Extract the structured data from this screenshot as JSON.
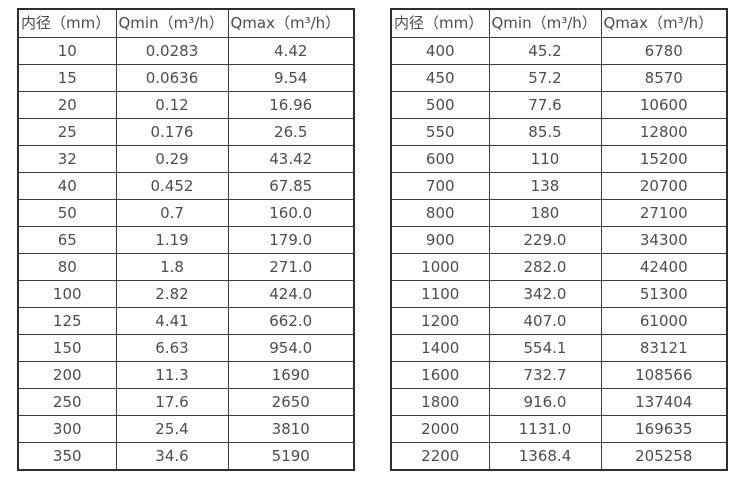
{
  "colors": {
    "background": "#ffffff",
    "border_outer": "#2e2e2e",
    "border_inner": "#3c3c3c",
    "text": "#4d4d4d"
  },
  "columns": [
    "内径（mm）",
    "Qmin（m³/h）",
    "Qmax（m³/h）"
  ],
  "tables": {
    "left": {
      "rows": [
        [
          "10",
          "0.0283",
          "4.42"
        ],
        [
          "15",
          "0.0636",
          "9.54"
        ],
        [
          "20",
          "0.12",
          "16.96"
        ],
        [
          "25",
          "0.176",
          "26.5"
        ],
        [
          "32",
          "0.29",
          "43.42"
        ],
        [
          "40",
          "0.452",
          "67.85"
        ],
        [
          "50",
          "0.7",
          "160.0"
        ],
        [
          "65",
          "1.19",
          "179.0"
        ],
        [
          "80",
          "1.8",
          "271.0"
        ],
        [
          "100",
          "2.82",
          "424.0"
        ],
        [
          "125",
          "4.41",
          "662.0"
        ],
        [
          "150",
          "6.63",
          "954.0"
        ],
        [
          "200",
          "11.3",
          "1690"
        ],
        [
          "250",
          "17.6",
          "2650"
        ],
        [
          "300",
          "25.4",
          "3810"
        ],
        [
          "350",
          "34.6",
          "5190"
        ]
      ]
    },
    "right": {
      "rows": [
        [
          "400",
          "45.2",
          "6780"
        ],
        [
          "450",
          "57.2",
          "8570"
        ],
        [
          "500",
          "77.6",
          "10600"
        ],
        [
          "550",
          "85.5",
          "12800"
        ],
        [
          "600",
          "110",
          "15200"
        ],
        [
          "700",
          "138",
          "20700"
        ],
        [
          "800",
          "180",
          "27100"
        ],
        [
          "900",
          "229.0",
          "34300"
        ],
        [
          "1000",
          "282.0",
          "42400"
        ],
        [
          "1100",
          "342.0",
          "51300"
        ],
        [
          "1200",
          "407.0",
          "61000"
        ],
        [
          "1400",
          "554.1",
          "83121"
        ],
        [
          "1600",
          "732.7",
          "108566"
        ],
        [
          "1800",
          "916.0",
          "137404"
        ],
        [
          "2000",
          "1131.0",
          "169635"
        ],
        [
          "2200",
          "1368.4",
          "205258"
        ]
      ]
    }
  }
}
